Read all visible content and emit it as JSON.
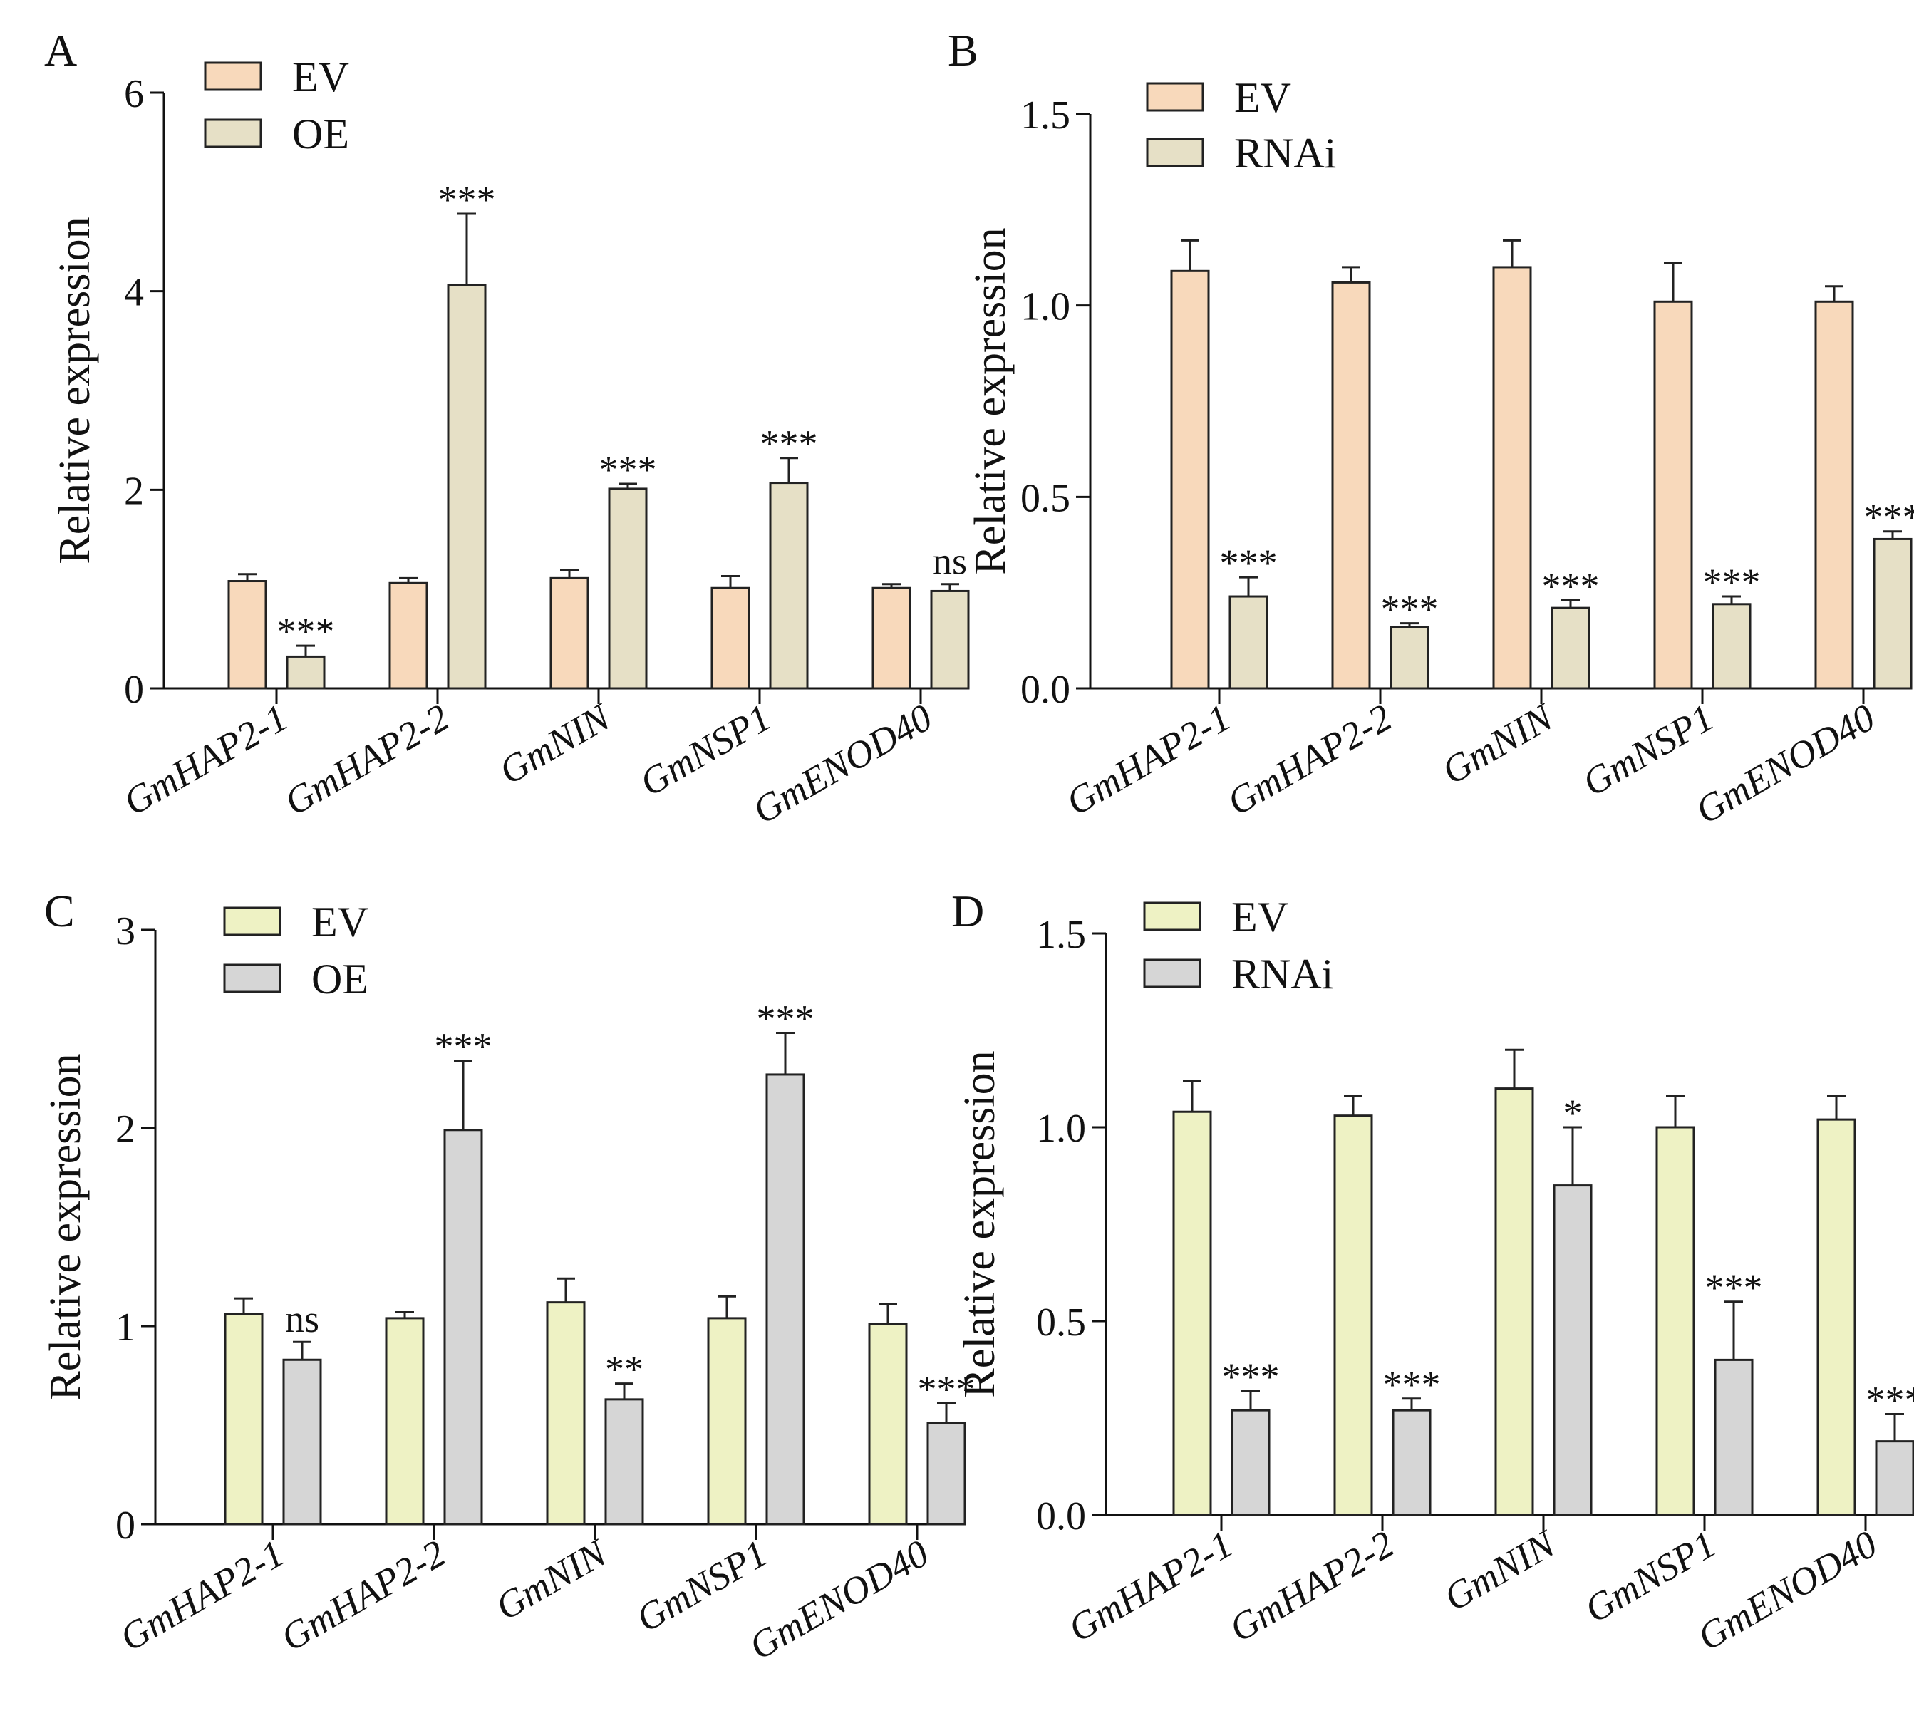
{
  "figure": {
    "colors": {
      "ev_A_B": "#F8D9BB",
      "treat_A_B": "#E6E0C6",
      "ev_C_D": "#EEF2C4",
      "treat_C_D": "#D6D6D6",
      "axis": "#111111"
    }
  },
  "chart_data": [
    {
      "panel": "A",
      "type": "bar",
      "title": "",
      "xlabel": "",
      "ylabel": "Relative expression",
      "ylim": [
        0,
        6
      ],
      "yticks": [
        0,
        2,
        4,
        6
      ],
      "ytick_labels": [
        "0",
        "2",
        "4",
        "6"
      ],
      "categories": [
        "GmHAP2-1",
        "GmHAP2-2",
        "GmNIN",
        "GmNSP1",
        "GmENOD40"
      ],
      "series": [
        {
          "name": "EV",
          "color": "#F8D9BB",
          "values": [
            1.08,
            1.06,
            1.11,
            1.01,
            1.01
          ],
          "errors": [
            0.07,
            0.05,
            0.08,
            0.12,
            0.04
          ]
        },
        {
          "name": "OE",
          "color": "#E6E0C6",
          "values": [
            0.32,
            4.06,
            2.01,
            2.07,
            0.98
          ],
          "errors": [
            0.11,
            0.72,
            0.05,
            0.25,
            0.07
          ]
        }
      ],
      "significance": [
        "***",
        "***",
        "***",
        "***",
        "ns"
      ],
      "legend_position": "top-left"
    },
    {
      "panel": "B",
      "type": "bar",
      "title": "",
      "xlabel": "",
      "ylabel": "Relative expression",
      "ylim": [
        0,
        1.5
      ],
      "yticks": [
        0,
        0.5,
        1.0,
        1.5
      ],
      "ytick_labels": [
        "0.0",
        "0.5",
        "1.0",
        "1.5"
      ],
      "categories": [
        "GmHAP2-1",
        "GmHAP2-2",
        "GmNIN",
        "GmNSP1",
        "GmENOD40"
      ],
      "series": [
        {
          "name": "EV",
          "color": "#F8D9BB",
          "values": [
            1.09,
            1.06,
            1.1,
            1.01,
            1.01
          ],
          "errors": [
            0.08,
            0.04,
            0.07,
            0.1,
            0.04
          ]
        },
        {
          "name": "RNAi",
          "color": "#E6E0C6",
          "values": [
            0.24,
            0.16,
            0.21,
            0.22,
            0.39
          ],
          "errors": [
            0.05,
            0.01,
            0.02,
            0.02,
            0.02
          ]
        }
      ],
      "significance": [
        "***",
        "***",
        "***",
        "***",
        "***"
      ],
      "legend_position": "top-left"
    },
    {
      "panel": "C",
      "type": "bar",
      "title": "",
      "xlabel": "",
      "ylabel": "Relative expression",
      "ylim": [
        0,
        3
      ],
      "yticks": [
        0,
        1,
        2,
        3
      ],
      "ytick_labels": [
        "0",
        "1",
        "2",
        "3"
      ],
      "categories": [
        "GmHAP2-1",
        "GmHAP2-2",
        "GmNIN",
        "GmNSP1",
        "GmENOD40"
      ],
      "series": [
        {
          "name": "EV",
          "color": "#EEF2C4",
          "values": [
            1.06,
            1.04,
            1.12,
            1.04,
            1.01
          ],
          "errors": [
            0.08,
            0.03,
            0.12,
            0.11,
            0.1
          ]
        },
        {
          "name": "OE",
          "color": "#D6D6D6",
          "values": [
            0.83,
            1.99,
            0.63,
            2.27,
            0.51
          ],
          "errors": [
            0.09,
            0.35,
            0.08,
            0.21,
            0.1
          ]
        }
      ],
      "significance": [
        "ns",
        "***",
        "**",
        "***",
        "***"
      ],
      "legend_position": "top-left"
    },
    {
      "panel": "D",
      "type": "bar",
      "title": "",
      "xlabel": "",
      "ylabel": "Relative expression",
      "ylim": [
        0,
        1.5
      ],
      "yticks": [
        0,
        0.5,
        1.0,
        1.5
      ],
      "ytick_labels": [
        "0.0",
        "0.5",
        "1.0",
        "1.5"
      ],
      "categories": [
        "GmHAP2-1",
        "GmHAP2-2",
        "GmNIN",
        "GmNSP1",
        "GmENOD40"
      ],
      "series": [
        {
          "name": "EV",
          "color": "#EEF2C4",
          "values": [
            1.04,
            1.03,
            1.1,
            1.0,
            1.02
          ],
          "errors": [
            0.08,
            0.05,
            0.1,
            0.08,
            0.06
          ]
        },
        {
          "name": "RNAi",
          "color": "#D6D6D6",
          "values": [
            0.27,
            0.27,
            0.85,
            0.4,
            0.19
          ],
          "errors": [
            0.05,
            0.03,
            0.15,
            0.15,
            0.07
          ]
        }
      ],
      "significance": [
        "***",
        "***",
        "*",
        "***",
        "***"
      ],
      "legend_position": "top-left"
    }
  ]
}
